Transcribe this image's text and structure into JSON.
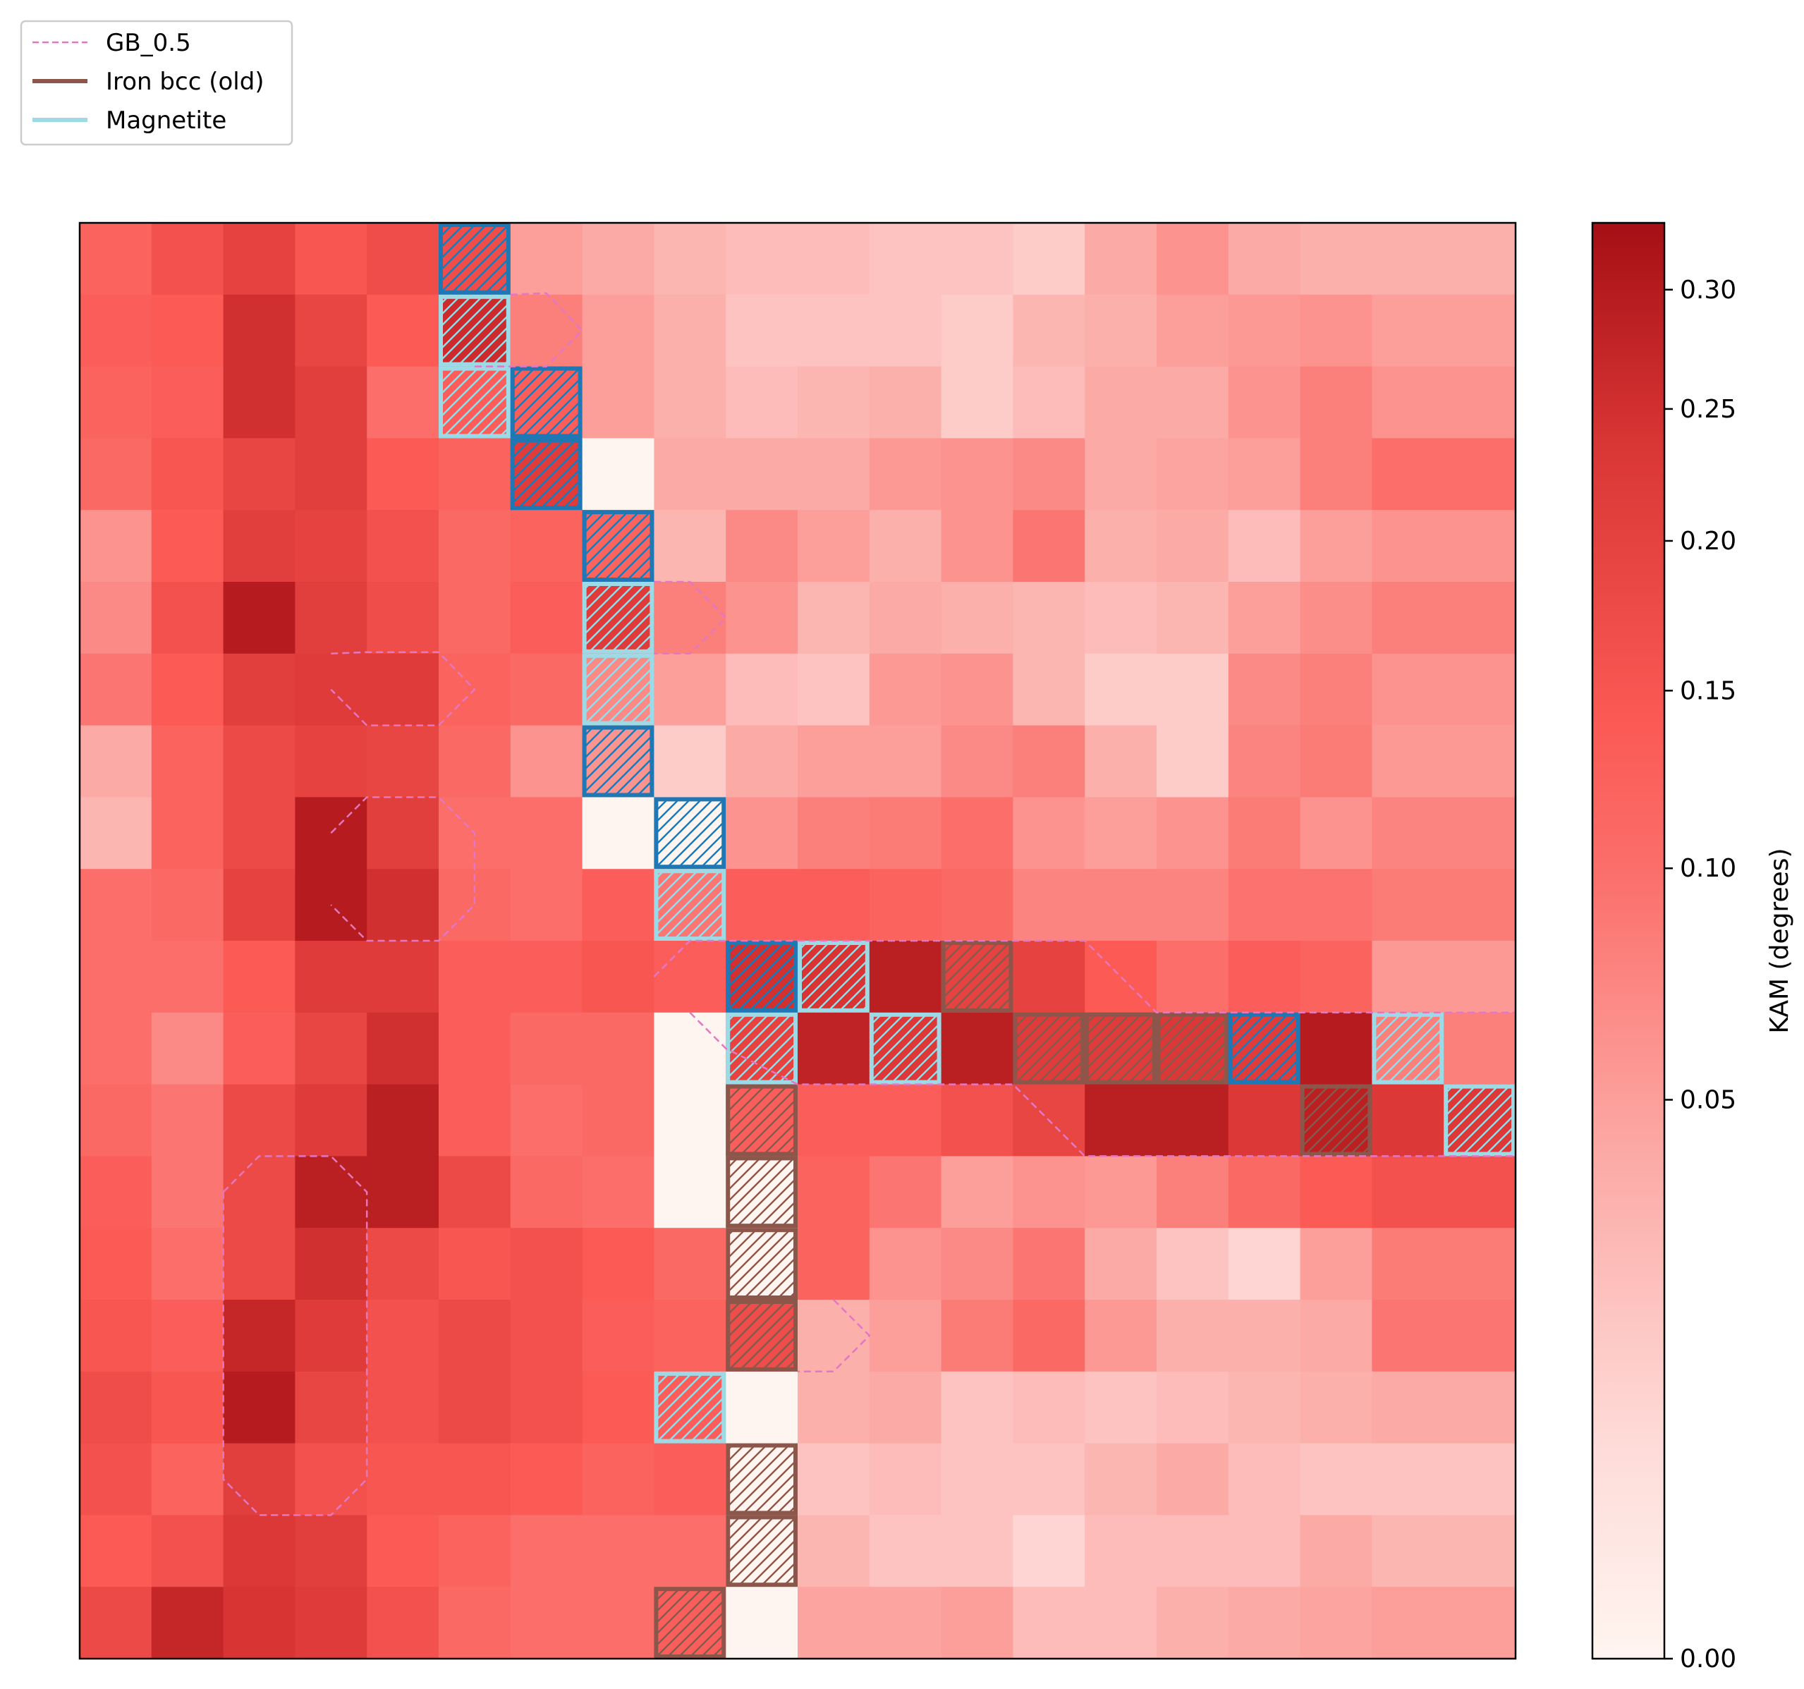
{
  "chart_data": {
    "type": "heatmap",
    "rows": 20,
    "cols": 20,
    "colorbar": {
      "label": "KAM (degrees)",
      "ticks": [
        0.0,
        0.05,
        0.1,
        0.15,
        0.2,
        0.25,
        0.3
      ],
      "tick_labels": [
        "0.00",
        "0.05",
        "0.10",
        "0.15",
        "0.20",
        "0.25",
        "0.30"
      ],
      "range": [
        0,
        0.33
      ],
      "color_low": "#fff5f0",
      "color_mid": "#fb5a55",
      "color_high": "#a50f15"
    },
    "legend": {
      "location": "top-left",
      "entries": [
        {
          "label": "GB_0.5",
          "style": "dashed",
          "color": "#e377c2"
        },
        {
          "label": "Iron bcc (old)",
          "style": "solid",
          "color": "#8c564b"
        },
        {
          "label": "Magnetite",
          "style": "solid",
          "color": "#9edae5"
        }
      ]
    },
    "phase_colors": {
      "I": "#8c564b",
      "M": "#9edae5",
      "B": "#1f77b4"
    },
    "values": [
      [
        0.12,
        0.16,
        0.2,
        0.15,
        0.17,
        null,
        0.05,
        0.04,
        0.03,
        0.025,
        0.025,
        0.02,
        0.02,
        0.015,
        0.04,
        0.06,
        0.04,
        0.035,
        0.035,
        null
      ],
      [
        0.13,
        0.14,
        0.25,
        0.19,
        0.14,
        0.26,
        0.08,
        0.05,
        0.035,
        0.02,
        0.02,
        0.02,
        0.015,
        0.03,
        0.035,
        0.05,
        0.055,
        0.06,
        0.05,
        null
      ],
      [
        0.12,
        0.13,
        0.25,
        0.21,
        0.1,
        0.13,
        null,
        0.05,
        0.035,
        0.025,
        0.03,
        0.035,
        0.015,
        0.025,
        0.04,
        0.04,
        0.06,
        0.08,
        0.06,
        null
      ],
      [
        0.11,
        0.15,
        0.19,
        0.21,
        0.14,
        0.12,
        0.22,
        0.0,
        0.04,
        0.04,
        0.04,
        0.055,
        0.06,
        0.07,
        0.04,
        0.045,
        0.05,
        0.08,
        0.1,
        null
      ],
      [
        0.06,
        0.14,
        0.21,
        0.2,
        0.16,
        0.11,
        0.12,
        null,
        0.03,
        0.07,
        0.05,
        0.035,
        0.06,
        0.09,
        0.035,
        0.04,
        0.025,
        0.05,
        0.06,
        null
      ],
      [
        0.07,
        0.16,
        0.3,
        0.21,
        0.17,
        0.11,
        0.13,
        0.22,
        0.08,
        0.06,
        0.03,
        0.04,
        0.035,
        0.03,
        0.025,
        0.03,
        0.05,
        0.065,
        0.08,
        null
      ],
      [
        0.09,
        0.14,
        0.21,
        0.22,
        0.22,
        0.12,
        0.11,
        0.07,
        0.05,
        0.025,
        0.02,
        0.055,
        0.06,
        0.03,
        0.015,
        0.015,
        0.07,
        0.08,
        0.06,
        null
      ],
      [
        0.04,
        0.12,
        0.18,
        0.2,
        0.19,
        0.11,
        0.06,
        null,
        0.015,
        0.04,
        0.05,
        0.05,
        0.07,
        0.08,
        0.035,
        0.015,
        0.075,
        0.085,
        0.055,
        null
      ],
      [
        0.03,
        0.12,
        0.18,
        0.3,
        0.21,
        0.1,
        0.1,
        0.0,
        null,
        0.06,
        0.08,
        0.085,
        0.1,
        0.06,
        0.05,
        0.06,
        0.085,
        0.06,
        0.075,
        null
      ],
      [
        0.1,
        0.11,
        0.2,
        0.3,
        0.25,
        0.11,
        0.1,
        0.13,
        0.09,
        0.13,
        0.13,
        0.12,
        0.11,
        0.075,
        0.075,
        0.075,
        0.095,
        0.095,
        0.085,
        null
      ],
      [
        0.1,
        0.1,
        0.14,
        0.22,
        0.22,
        0.13,
        0.13,
        0.15,
        0.13,
        0.25,
        0.24,
        0.29,
        0.2,
        0.2,
        0.14,
        0.1,
        0.13,
        0.12,
        0.055,
        null
      ],
      [
        0.1,
        0.07,
        0.13,
        0.19,
        0.25,
        0.13,
        0.11,
        0.11,
        0.0,
        0.2,
        0.28,
        0.23,
        0.29,
        0.22,
        0.22,
        0.23,
        0.22,
        0.3,
        0.08,
        null
      ],
      [
        0.11,
        0.09,
        0.18,
        0.22,
        0.29,
        0.13,
        0.1,
        0.11,
        0.0,
        0.13,
        0.13,
        0.13,
        0.16,
        0.19,
        0.29,
        0.29,
        0.23,
        0.29,
        0.23,
        null
      ],
      [
        0.13,
        0.09,
        0.18,
        0.29,
        0.29,
        0.18,
        0.11,
        0.1,
        0.0,
        0.0,
        0.12,
        0.09,
        0.05,
        0.06,
        0.055,
        0.08,
        0.11,
        0.14,
        0.16,
        null
      ],
      [
        0.14,
        0.1,
        0.18,
        0.25,
        0.18,
        0.15,
        0.16,
        0.14,
        0.11,
        0.0,
        0.12,
        0.06,
        0.07,
        0.09,
        0.04,
        0.02,
        0.01,
        0.05,
        0.085,
        null
      ],
      [
        0.15,
        0.13,
        0.27,
        0.22,
        0.16,
        0.18,
        0.16,
        0.13,
        0.12,
        0.17,
        0.035,
        0.05,
        0.085,
        0.11,
        0.055,
        0.035,
        0.035,
        0.04,
        0.09,
        null
      ],
      [
        0.17,
        0.15,
        0.3,
        0.19,
        0.16,
        0.18,
        0.16,
        0.14,
        0.13,
        0.0,
        0.035,
        0.04,
        0.02,
        0.025,
        0.02,
        0.025,
        0.03,
        0.035,
        0.04,
        null
      ],
      [
        0.16,
        0.12,
        0.21,
        0.16,
        0.15,
        0.15,
        0.14,
        0.12,
        0.13,
        0.0,
        0.02,
        0.025,
        0.02,
        0.02,
        0.03,
        0.04,
        0.025,
        0.02,
        0.02,
        null
      ],
      [
        0.14,
        0.16,
        0.23,
        0.21,
        0.14,
        0.12,
        0.1,
        0.1,
        0.1,
        0.0,
        0.03,
        0.02,
        0.02,
        0.01,
        0.025,
        0.025,
        0.025,
        0.04,
        0.03,
        null
      ],
      [
        0.18,
        0.27,
        0.24,
        0.22,
        0.16,
        0.11,
        0.1,
        0.1,
        0.13,
        0.0,
        0.045,
        0.045,
        0.05,
        0.025,
        0.025,
        0.035,
        0.04,
        0.045,
        0.05,
        null
      ]
    ],
    "phase_cells": [
      {
        "row": 0,
        "col": 5,
        "phase": "B"
      },
      {
        "row": 1,
        "col": 5,
        "phase": "M"
      },
      {
        "row": 2,
        "col": 5,
        "phase": "M"
      },
      {
        "row": 2,
        "col": 6,
        "phase": "B"
      },
      {
        "row": 3,
        "col": 6,
        "phase": "B"
      },
      {
        "row": 4,
        "col": 7,
        "phase": "B"
      },
      {
        "row": 5,
        "col": 7,
        "phase": "M"
      },
      {
        "row": 6,
        "col": 7,
        "phase": "M"
      },
      {
        "row": 7,
        "col": 7,
        "phase": "B"
      },
      {
        "row": 8,
        "col": 8,
        "phase": "B"
      },
      {
        "row": 9,
        "col": 8,
        "phase": "M"
      },
      {
        "row": 10,
        "col": 9,
        "phase": "B"
      },
      {
        "row": 10,
        "col": 10,
        "phase": "M"
      },
      {
        "row": 10,
        "col": 12,
        "phase": "I"
      },
      {
        "row": 11,
        "col": 9,
        "phase": "M"
      },
      {
        "row": 11,
        "col": 11,
        "phase": "M"
      },
      {
        "row": 11,
        "col": 13,
        "phase": "I"
      },
      {
        "row": 11,
        "col": 14,
        "phase": "I"
      },
      {
        "row": 11,
        "col": 15,
        "phase": "I"
      },
      {
        "row": 11,
        "col": 16,
        "phase": "B"
      },
      {
        "row": 11,
        "col": 18,
        "phase": "M"
      },
      {
        "row": 12,
        "col": 9,
        "phase": "I"
      },
      {
        "row": 12,
        "col": 17,
        "phase": "I"
      },
      {
        "row": 12,
        "col": 19,
        "phase": "M"
      },
      {
        "row": 13,
        "col": 9,
        "phase": "I"
      },
      {
        "row": 14,
        "col": 9,
        "phase": "I"
      },
      {
        "row": 15,
        "col": 9,
        "phase": "I"
      },
      {
        "row": 16,
        "col": 8,
        "phase": "M"
      },
      {
        "row": 17,
        "col": 9,
        "phase": "I"
      },
      {
        "row": 18,
        "col": 9,
        "phase": "I"
      },
      {
        "row": 19,
        "col": 8,
        "phase": "I"
      }
    ],
    "grain_boundaries": [
      [
        [
          6,
          1
        ],
        [
          6.5,
          0.98
        ],
        [
          7,
          1.5
        ],
        [
          6.5,
          2
        ],
        [
          6,
          2
        ],
        [
          5.5,
          2
        ]
      ],
      [
        [
          3.5,
          6
        ],
        [
          4,
          5.98
        ],
        [
          5,
          5.98
        ],
        [
          5.5,
          6.5
        ],
        [
          5,
          7
        ],
        [
          4,
          7
        ],
        [
          3.5,
          6.5
        ]
      ],
      [
        [
          3.5,
          8.5
        ],
        [
          4,
          8
        ],
        [
          5,
          8
        ],
        [
          5.5,
          8.5
        ],
        [
          5.5,
          9.5
        ],
        [
          5,
          10
        ],
        [
          4,
          10
        ],
        [
          3.5,
          9.5
        ]
      ],
      [
        [
          8,
          5
        ],
        [
          8.5,
          5
        ],
        [
          9,
          5.5
        ],
        [
          8.5,
          6
        ],
        [
          8,
          6
        ]
      ],
      [
        [
          10,
          10
        ],
        [
          14,
          10
        ],
        [
          15,
          11
        ],
        [
          20,
          11
        ]
      ],
      [
        [
          8,
          10.5
        ],
        [
          8.5,
          10
        ],
        [
          10,
          10
        ]
      ],
      [
        [
          8.5,
          11
        ],
        [
          9,
          11.5
        ],
        [
          10,
          12
        ],
        [
          12,
          12
        ],
        [
          13,
          12
        ],
        [
          14,
          13
        ],
        [
          20,
          13
        ]
      ],
      [
        [
          10.5,
          15
        ],
        [
          11,
          15.5
        ],
        [
          10.5,
          16
        ],
        [
          10,
          16
        ]
      ],
      [
        [
          2,
          13.5
        ],
        [
          2.5,
          13
        ],
        [
          3.5,
          13
        ],
        [
          4,
          13.5
        ],
        [
          4,
          17.5
        ],
        [
          3.5,
          18
        ],
        [
          2.5,
          18
        ],
        [
          2,
          17.5
        ],
        [
          2,
          13.5
        ]
      ]
    ]
  }
}
